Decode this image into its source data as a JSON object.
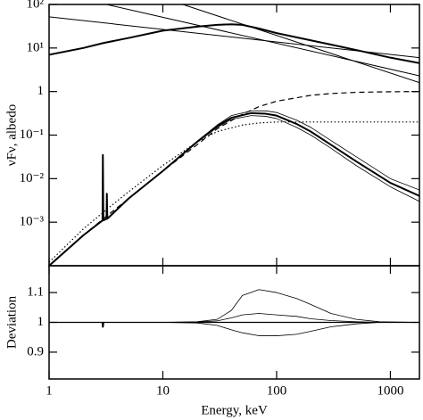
{
  "chart_data": [
    {
      "type": "line",
      "ylabel": "νFν, albedo",
      "xlog": true,
      "ylog": true,
      "xlim": [
        1,
        1800
      ],
      "ylim": [
        0.0001,
        100
      ],
      "xticks": [
        1,
        10,
        100,
        1000
      ],
      "yticks": [
        {
          "value": 100,
          "label": "10²"
        },
        {
          "value": 10,
          "label": "10¹"
        },
        1,
        {
          "value": 0.1,
          "label": "10⁻¹"
        },
        {
          "value": 0.01,
          "label": "10⁻²"
        },
        {
          "value": 0.001,
          "label": "10⁻³"
        }
      ],
      "series": [
        {
          "color": "#000000",
          "linewidth": 2,
          "x": [
            1,
            2,
            3,
            5,
            10,
            20,
            30,
            40,
            50,
            70,
            100,
            200,
            300,
            500,
            1000,
            1800
          ],
          "values": [
            7,
            10,
            13,
            17,
            25,
            31,
            34,
            35,
            34,
            28,
            22,
            15,
            12,
            9,
            6,
            4.5
          ]
        },
        {
          "color": "#000000",
          "linewidth": 1,
          "x": [
            1,
            1800
          ],
          "values": [
            52,
            6
          ]
        },
        {
          "color": "#000000",
          "linewidth": 1,
          "x": [
            3.2,
            1800
          ],
          "values": [
            100,
            2.3
          ]
        },
        {
          "color": "#000000",
          "linewidth": 1,
          "x": [
            15,
            1800
          ],
          "values": [
            100,
            1.6
          ]
        },
        {
          "color": "#000000",
          "linewidth": 1.2,
          "dash": "dashed",
          "x": [
            1,
            2,
            3,
            5,
            10,
            20,
            30,
            50,
            70,
            100,
            200,
            300,
            500,
            1000,
            1800
          ],
          "values": [
            0.0001,
            0.0005,
            0.0012,
            0.0035,
            0.015,
            0.06,
            0.14,
            0.3,
            0.45,
            0.6,
            0.82,
            0.9,
            0.96,
            0.99,
            1.0
          ]
        },
        {
          "color": "#000000",
          "linewidth": 1.2,
          "dash": "dotted",
          "x": [
            1,
            2,
            3,
            5,
            10,
            20,
            30,
            50,
            70,
            100,
            200,
            500,
            1800
          ],
          "values": [
            0.00012,
            0.0007,
            0.0017,
            0.005,
            0.02,
            0.07,
            0.12,
            0.17,
            0.19,
            0.2,
            0.2,
            0.2,
            0.2
          ]
        },
        {
          "color": "#000000",
          "linewidth": 2,
          "x": [
            1,
            2,
            2.95,
            2.97,
            3.0,
            3.2,
            3.22,
            3.25,
            5,
            10,
            20,
            30,
            40,
            60,
            80,
            100,
            150,
            200,
            300,
            500,
            1000,
            1800
          ],
          "values": [
            0.0001,
            0.0005,
            0.0011,
            0.035,
            0.0011,
            0.0012,
            0.0045,
            0.0012,
            0.0035,
            0.015,
            0.07,
            0.16,
            0.25,
            0.32,
            0.31,
            0.28,
            0.18,
            0.12,
            0.06,
            0.025,
            0.008,
            0.004
          ]
        },
        {
          "color": "#000000",
          "linewidth": 0.8,
          "x": [
            20,
            30,
            40,
            60,
            80,
            100,
            150,
            200,
            300,
            500,
            1000,
            1800
          ],
          "values": [
            0.072,
            0.17,
            0.28,
            0.36,
            0.36,
            0.33,
            0.22,
            0.15,
            0.075,
            0.032,
            0.01,
            0.0055
          ]
        },
        {
          "color": "#000000",
          "linewidth": 0.8,
          "x": [
            20,
            30,
            40,
            60,
            80,
            100,
            150,
            200,
            300,
            500,
            1000,
            1800
          ],
          "values": [
            0.068,
            0.15,
            0.23,
            0.28,
            0.27,
            0.24,
            0.15,
            0.1,
            0.05,
            0.02,
            0.0065,
            0.003
          ]
        }
      ]
    },
    {
      "type": "line",
      "ylabel": "Deviation",
      "xlabel": "Energy, keV",
      "xlog": true,
      "ylog": false,
      "xlim": [
        1,
        1800
      ],
      "ylim": [
        0.81,
        1.19
      ],
      "xticks": [
        1,
        10,
        100,
        1000
      ],
      "yticks": [
        0.9,
        1,
        1.1
      ],
      "series": [
        {
          "color": "#000000",
          "linewidth": 1.2,
          "x": [
            1,
            1800
          ],
          "values": [
            1,
            1
          ]
        },
        {
          "color": "#000000",
          "linewidth": 0.8,
          "x": [
            1,
            10,
            20,
            30,
            40,
            50,
            70,
            100,
            150,
            200,
            300,
            500,
            800,
            1800
          ],
          "values": [
            1,
            1,
            1.002,
            1.01,
            1.04,
            1.09,
            1.11,
            1.1,
            1.08,
            1.06,
            1.03,
            1.01,
            1.002,
            1
          ]
        },
        {
          "color": "#000000",
          "linewidth": 0.8,
          "x": [
            1,
            10,
            20,
            30,
            40,
            50,
            70,
            100,
            150,
            200,
            300,
            500,
            800,
            1800
          ],
          "values": [
            1,
            1,
            1.001,
            1.005,
            1.015,
            1.025,
            1.03,
            1.025,
            1.02,
            1.012,
            1.006,
            1.002,
            1,
            1
          ]
        },
        {
          "color": "#000000",
          "linewidth": 0.8,
          "x": [
            1,
            10,
            20,
            30,
            40,
            50,
            70,
            100,
            150,
            200,
            300,
            500,
            800,
            1800
          ],
          "values": [
            1,
            1,
            0.998,
            0.99,
            0.975,
            0.965,
            0.955,
            0.955,
            0.96,
            0.97,
            0.985,
            0.995,
            1,
            1
          ]
        },
        {
          "color": "#000000",
          "linewidth": 2,
          "x": [
            2.95,
            2.97,
            3.0
          ],
          "values": [
            1,
            0.985,
            1
          ]
        }
      ]
    }
  ]
}
